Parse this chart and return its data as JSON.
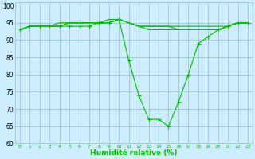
{
  "x": [
    0,
    1,
    2,
    3,
    4,
    5,
    6,
    7,
    8,
    9,
    10,
    11,
    12,
    13,
    14,
    15,
    16,
    17,
    18,
    19,
    20,
    21,
    22,
    23
  ],
  "y_main": [
    93,
    94,
    94,
    94,
    94,
    94,
    94,
    94,
    95,
    95,
    96,
    84,
    74,
    67,
    67,
    65,
    72,
    80,
    89,
    91,
    93,
    94,
    95,
    95
  ],
  "y_line2": [
    93,
    94,
    94,
    94,
    94,
    95,
    95,
    95,
    95,
    95,
    96,
    95,
    94,
    93,
    93,
    93,
    93,
    93,
    93,
    93,
    93,
    94,
    95,
    95
  ],
  "y_line3": [
    93,
    94,
    94,
    94,
    95,
    95,
    95,
    95,
    95,
    95,
    96,
    95,
    94,
    94,
    94,
    94,
    94,
    94,
    94,
    94,
    94,
    94,
    95,
    95
  ],
  "y_line4": [
    93,
    94,
    94,
    94,
    94,
    95,
    95,
    95,
    95,
    96,
    96,
    95,
    94,
    94,
    94,
    94,
    93,
    93,
    93,
    93,
    93,
    94,
    95,
    95
  ],
  "line_color": "#00bb00",
  "bg_color": "#cceeff",
  "grid_color": "#99bbbb",
  "xlabel": "Humidité relative (%)",
  "xlim": [
    -0.5,
    23.5
  ],
  "ylim": [
    60,
    101
  ],
  "yticks": [
    60,
    65,
    70,
    75,
    80,
    85,
    90,
    95,
    100
  ],
  "xticks": [
    0,
    1,
    2,
    3,
    4,
    5,
    6,
    7,
    8,
    9,
    10,
    11,
    12,
    13,
    14,
    15,
    16,
    17,
    18,
    19,
    20,
    21,
    22,
    23
  ]
}
